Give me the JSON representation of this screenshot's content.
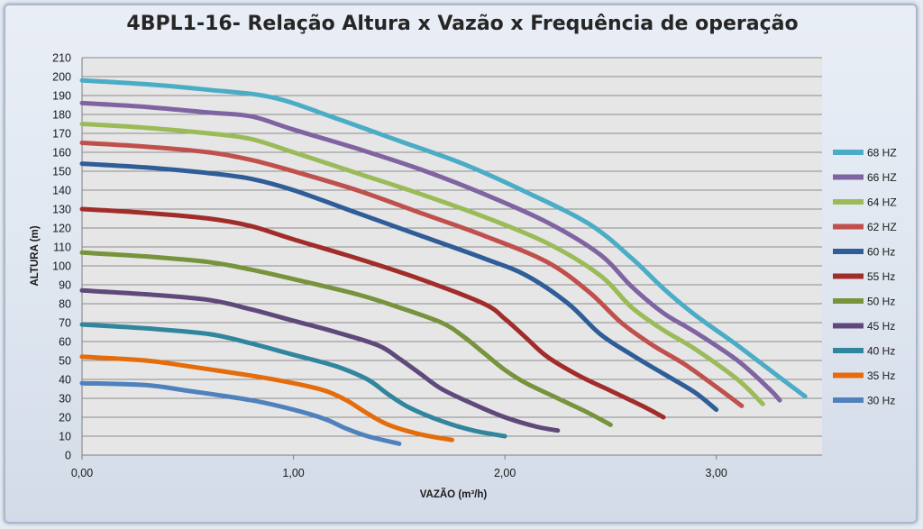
{
  "chart_data": {
    "type": "line",
    "title": "4BPL1-16- Relação Altura x Vazão x Frequência de operação",
    "xlabel": "VAZÃO (m³/h)",
    "ylabel": "ALTURA  (m)",
    "xlim": [
      0,
      3.5
    ],
    "ylim": [
      0,
      210
    ],
    "x_ticks": [
      "0,00",
      "1,00",
      "2,00",
      "3,00"
    ],
    "x_tick_values": [
      0,
      1,
      2,
      3
    ],
    "y_tick_step": 10,
    "grid": "horizontal",
    "legend_position": "right",
    "plot_background": "#e6e6e6",
    "series": [
      {
        "name": "68 HZ",
        "color": "#4bacc6",
        "points": [
          [
            0,
            198
          ],
          [
            0.3,
            196
          ],
          [
            0.6,
            193
          ],
          [
            0.9,
            189
          ],
          [
            1.2,
            178
          ],
          [
            1.5,
            166
          ],
          [
            1.8,
            154
          ],
          [
            2.1,
            139
          ],
          [
            2.4,
            122
          ],
          [
            2.6,
            104
          ],
          [
            2.75,
            88
          ],
          [
            2.9,
            74
          ],
          [
            3.1,
            58
          ],
          [
            3.3,
            41
          ],
          [
            3.42,
            31
          ]
        ]
      },
      {
        "name": "66 HZ",
        "color": "#8064a2",
        "points": [
          [
            0,
            186
          ],
          [
            0.3,
            184
          ],
          [
            0.6,
            181
          ],
          [
            0.8,
            179
          ],
          [
            1.0,
            172
          ],
          [
            1.3,
            162
          ],
          [
            1.6,
            151
          ],
          [
            1.9,
            138
          ],
          [
            2.2,
            123
          ],
          [
            2.45,
            106
          ],
          [
            2.6,
            89
          ],
          [
            2.75,
            75
          ],
          [
            2.9,
            65
          ],
          [
            3.1,
            50
          ],
          [
            3.25,
            35
          ],
          [
            3.3,
            29
          ]
        ]
      },
      {
        "name": "64 HZ",
        "color": "#9bbb59",
        "points": [
          [
            0,
            175
          ],
          [
            0.3,
            173
          ],
          [
            0.6,
            170
          ],
          [
            0.8,
            167
          ],
          [
            1.0,
            160
          ],
          [
            1.3,
            149
          ],
          [
            1.6,
            138
          ],
          [
            1.9,
            126
          ],
          [
            2.2,
            112
          ],
          [
            2.45,
            95
          ],
          [
            2.6,
            78
          ],
          [
            2.75,
            66
          ],
          [
            2.9,
            56
          ],
          [
            3.1,
            40
          ],
          [
            3.22,
            27
          ]
        ]
      },
      {
        "name": "62 HZ",
        "color": "#c0504d",
        "points": [
          [
            0,
            165
          ],
          [
            0.3,
            163
          ],
          [
            0.6,
            160
          ],
          [
            0.8,
            156
          ],
          [
            1.0,
            150
          ],
          [
            1.3,
            140
          ],
          [
            1.6,
            128
          ],
          [
            1.9,
            116
          ],
          [
            2.2,
            102
          ],
          [
            2.4,
            86
          ],
          [
            2.55,
            70
          ],
          [
            2.7,
            58
          ],
          [
            2.85,
            48
          ],
          [
            3.0,
            36
          ],
          [
            3.12,
            26
          ]
        ]
      },
      {
        "name": "60 Hz",
        "color": "#2f5d97",
        "points": [
          [
            0,
            154
          ],
          [
            0.3,
            152
          ],
          [
            0.6,
            149
          ],
          [
            0.8,
            146
          ],
          [
            1.0,
            140
          ],
          [
            1.3,
            128
          ],
          [
            1.6,
            116
          ],
          [
            1.9,
            104
          ],
          [
            2.1,
            95
          ],
          [
            2.3,
            80
          ],
          [
            2.45,
            64
          ],
          [
            2.6,
            53
          ],
          [
            2.75,
            43
          ],
          [
            2.9,
            33
          ],
          [
            3.0,
            24
          ]
        ]
      },
      {
        "name": "55 Hz",
        "color": "#a12d2b",
        "points": [
          [
            0,
            130
          ],
          [
            0.3,
            128
          ],
          [
            0.6,
            125
          ],
          [
            0.8,
            121
          ],
          [
            1.0,
            114
          ],
          [
            1.3,
            104
          ],
          [
            1.6,
            93
          ],
          [
            1.9,
            80
          ],
          [
            2.0,
            72
          ],
          [
            2.1,
            62
          ],
          [
            2.2,
            52
          ],
          [
            2.35,
            42
          ],
          [
            2.5,
            34
          ],
          [
            2.65,
            26
          ],
          [
            2.75,
            20
          ]
        ]
      },
      {
        "name": "50 Hz",
        "color": "#77933c",
        "points": [
          [
            0,
            107
          ],
          [
            0.3,
            105
          ],
          [
            0.6,
            102
          ],
          [
            0.8,
            98
          ],
          [
            1.0,
            93
          ],
          [
            1.3,
            85
          ],
          [
            1.5,
            78
          ],
          [
            1.7,
            70
          ],
          [
            1.8,
            63
          ],
          [
            1.9,
            54
          ],
          [
            2.0,
            45
          ],
          [
            2.1,
            38
          ],
          [
            2.25,
            30
          ],
          [
            2.4,
            22
          ],
          [
            2.5,
            16
          ]
        ]
      },
      {
        "name": "45 Hz",
        "color": "#5f497a",
        "points": [
          [
            0,
            87
          ],
          [
            0.3,
            85
          ],
          [
            0.6,
            82
          ],
          [
            0.8,
            77
          ],
          [
            1.0,
            71
          ],
          [
            1.2,
            65
          ],
          [
            1.4,
            58
          ],
          [
            1.5,
            51
          ],
          [
            1.6,
            43
          ],
          [
            1.7,
            35
          ],
          [
            1.85,
            27
          ],
          [
            2.0,
            20
          ],
          [
            2.15,
            15
          ],
          [
            2.25,
            13
          ]
        ]
      },
      {
        "name": "40 Hz",
        "color": "#31859c",
        "points": [
          [
            0,
            69
          ],
          [
            0.3,
            67
          ],
          [
            0.6,
            64
          ],
          [
            0.8,
            59
          ],
          [
            1.0,
            53
          ],
          [
            1.2,
            47
          ],
          [
            1.35,
            40
          ],
          [
            1.45,
            32
          ],
          [
            1.55,
            25
          ],
          [
            1.7,
            18
          ],
          [
            1.85,
            13
          ],
          [
            2.0,
            10
          ]
        ]
      },
      {
        "name": "35 Hz",
        "color": "#e46c0a",
        "points": [
          [
            0,
            52
          ],
          [
            0.3,
            50
          ],
          [
            0.5,
            47
          ],
          [
            0.8,
            42
          ],
          [
            1.0,
            38
          ],
          [
            1.15,
            34
          ],
          [
            1.25,
            29
          ],
          [
            1.35,
            22
          ],
          [
            1.45,
            16
          ],
          [
            1.6,
            11
          ],
          [
            1.75,
            8
          ]
        ]
      },
      {
        "name": "30 Hz",
        "color": "#4f81bd",
        "points": [
          [
            0,
            38
          ],
          [
            0.3,
            37
          ],
          [
            0.5,
            34
          ],
          [
            0.8,
            29
          ],
          [
            1.0,
            24
          ],
          [
            1.15,
            19
          ],
          [
            1.25,
            14
          ],
          [
            1.35,
            10
          ],
          [
            1.5,
            6
          ]
        ]
      }
    ]
  }
}
